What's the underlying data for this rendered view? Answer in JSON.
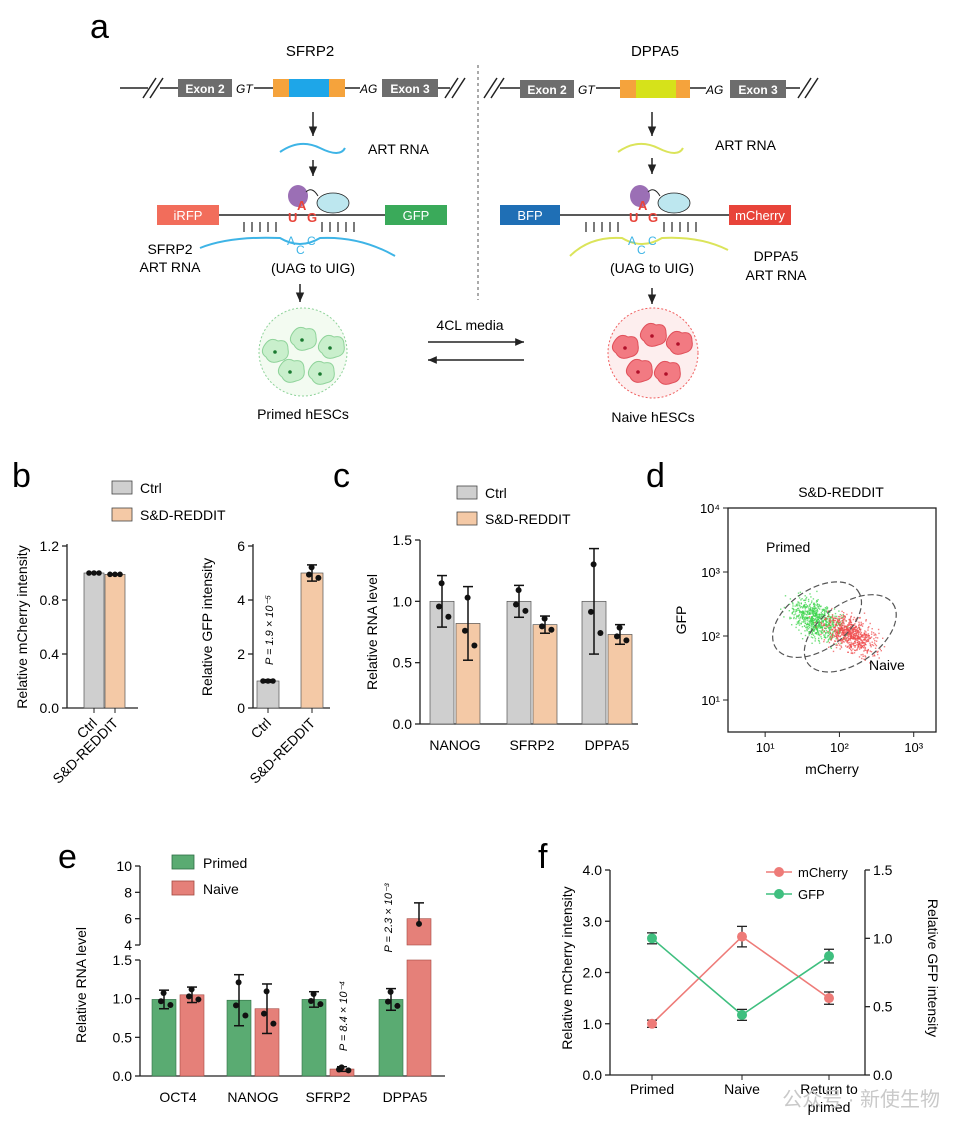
{
  "panel_a": {
    "letter": "a",
    "left_title": "SFRP2",
    "right_title": "DPPA5",
    "exon2": "Exon 2",
    "exon3": "Exon 3",
    "gt": "GT",
    "ag": "AG",
    "art_rna": "ART RNA",
    "left_reporter_left": "iRFP",
    "left_reporter_right": "GFP",
    "right_reporter_left": "BFP",
    "right_reporter_right": "mCherry",
    "codon_top": [
      "U",
      "A",
      "G"
    ],
    "codon_bottom": [
      "A",
      "C",
      "C"
    ],
    "edit_label": "(UAG  to UIG)",
    "left_art_line1": "SFRP2",
    "left_art_line2": "ART RNA",
    "right_art_line1": "DPPA5",
    "right_art_line2": "ART RNA",
    "media_label": "4CL media",
    "left_cells": "Primed hESCs",
    "right_cells": "Naive hESCs",
    "colors": {
      "irfp": "#f26d5b",
      "gfp": "#3aaa5a",
      "bfp": "#1f6fb5",
      "mcherry": "#e8443a",
      "exon": "#6d6d6d",
      "flank": "#f5a33c",
      "sfrp2_core": "#1ea6e8",
      "dppa5_core": "#d6e21a",
      "sfrp2_rna": "#3eb4e6",
      "dppa5_rna": "#dbe45a",
      "adar": "#9b6fb5",
      "partner": "#bde7ef"
    }
  },
  "chart_data": [
    {
      "panel": "b",
      "type": "bar",
      "legend": [
        "Ctrl",
        "S&D-REDDIT"
      ],
      "categories": [
        "Ctrl",
        "S&D-REDDIT"
      ],
      "values": [
        1.0,
        0.99
      ],
      "ylabel": "Relative mCherry intensity",
      "ylim": [
        0,
        1.2
      ],
      "yticks": [
        "0.0",
        "0.4",
        "0.8",
        "1.2"
      ],
      "colors": [
        "#cfcfcf",
        "#f4c9a6"
      ]
    },
    {
      "panel": "b",
      "type": "bar",
      "categories": [
        "Ctrl",
        "S&D-REDDIT"
      ],
      "values": [
        1.0,
        5.0
      ],
      "errors": [
        0.05,
        0.3
      ],
      "ylabel": "Relative GFP intensity",
      "ylim": [
        0,
        6
      ],
      "yticks": [
        "0",
        "2",
        "4",
        "6"
      ],
      "annotation": "P = 1.9 × 10⁻⁵",
      "colors": [
        "#cfcfcf",
        "#f4c9a6"
      ]
    },
    {
      "panel": "c",
      "type": "bar",
      "legend": [
        "Ctrl",
        "S&D-REDDIT"
      ],
      "categories": [
        "NANOG",
        "SFRP2",
        "DPPA5"
      ],
      "series": [
        {
          "name": "Ctrl",
          "values": [
            1.0,
            1.0,
            1.0
          ],
          "errors": [
            0.21,
            0.13,
            0.43
          ]
        },
        {
          "name": "S&D-REDDIT",
          "values": [
            0.82,
            0.81,
            0.73
          ],
          "errors": [
            0.3,
            0.07,
            0.08
          ]
        }
      ],
      "ylabel": "Relative RNA level",
      "ylim": [
        0,
        1.5
      ],
      "yticks": [
        "0.0",
        "0.5",
        "1.0",
        "1.5"
      ],
      "colors": [
        "#cfcfcf",
        "#f4c9a6"
      ]
    },
    {
      "panel": "d",
      "type": "scatter",
      "title": "S&D-REDDIT",
      "xlabel": "mCherry",
      "ylabel": "GFP",
      "xscale": "log",
      "yscale": "log",
      "xticks": [
        "10¹",
        "10²",
        "10³"
      ],
      "yticks": [
        "10¹",
        "10²",
        "10³",
        "10⁴"
      ],
      "gates": [
        "Primed",
        "Naive"
      ],
      "clusters": [
        {
          "name": "Primed",
          "center_mcherry": 50,
          "center_gfp": 180
        },
        {
          "name": "Naive",
          "center_mcherry": 140,
          "center_gfp": 110
        }
      ],
      "colors": [
        "#3bd44a",
        "#f0484a"
      ]
    },
    {
      "panel": "e",
      "type": "bar",
      "legend": [
        "Primed",
        "Naive"
      ],
      "categories": [
        "OCT4",
        "NANOG",
        "SFRP2",
        "DPPA5"
      ],
      "series": [
        {
          "name": "Primed",
          "values": [
            0.99,
            0.98,
            0.99,
            0.99
          ],
          "errors": [
            0.12,
            0.33,
            0.1,
            0.14
          ]
        },
        {
          "name": "Naive",
          "values": [
            1.05,
            0.87,
            0.09,
            6.0
          ],
          "errors": [
            0.1,
            0.32,
            0.03,
            1.2
          ]
        }
      ],
      "ylabel": "Relative RNA level",
      "ylim": [
        0,
        10
      ],
      "axis_break": [
        1.5,
        4
      ],
      "yticks": [
        "0.0",
        "0.5",
        "1.0",
        "1.5",
        "4",
        "6",
        "8",
        "10"
      ],
      "annotations": [
        "P = 8.4 × 10⁻⁴",
        "P = 2.3 × 10⁻³"
      ],
      "colors": [
        "#5aab72",
        "#e58079"
      ]
    },
    {
      "panel": "f",
      "type": "line",
      "categories": [
        "Primed",
        "Naive",
        "Return to primed"
      ],
      "series": [
        {
          "name": "mCherry",
          "axis": "left",
          "values": [
            1.0,
            2.7,
            1.5
          ],
          "errors": [
            0.07,
            0.2,
            0.12
          ]
        },
        {
          "name": "GFP",
          "axis": "right",
          "values": [
            1.0,
            0.44,
            0.87
          ],
          "errors": [
            0.04,
            0.04,
            0.05
          ]
        }
      ],
      "ylabel": "Relative mCherry intensity",
      "ylabel_right": "Relative GFP intensity",
      "ylim": [
        0,
        4
      ],
      "ylim_right": [
        0,
        1.5
      ],
      "yticks": [
        "0.0",
        "1.0",
        "2.0",
        "3.0",
        "4.0"
      ],
      "yticks_right": [
        "0.0",
        "0.5",
        "1.0",
        "1.5"
      ],
      "colors": [
        "#ee7b78",
        "#3fbf7f"
      ]
    }
  ],
  "watermark": "公众号 · 新使生物"
}
